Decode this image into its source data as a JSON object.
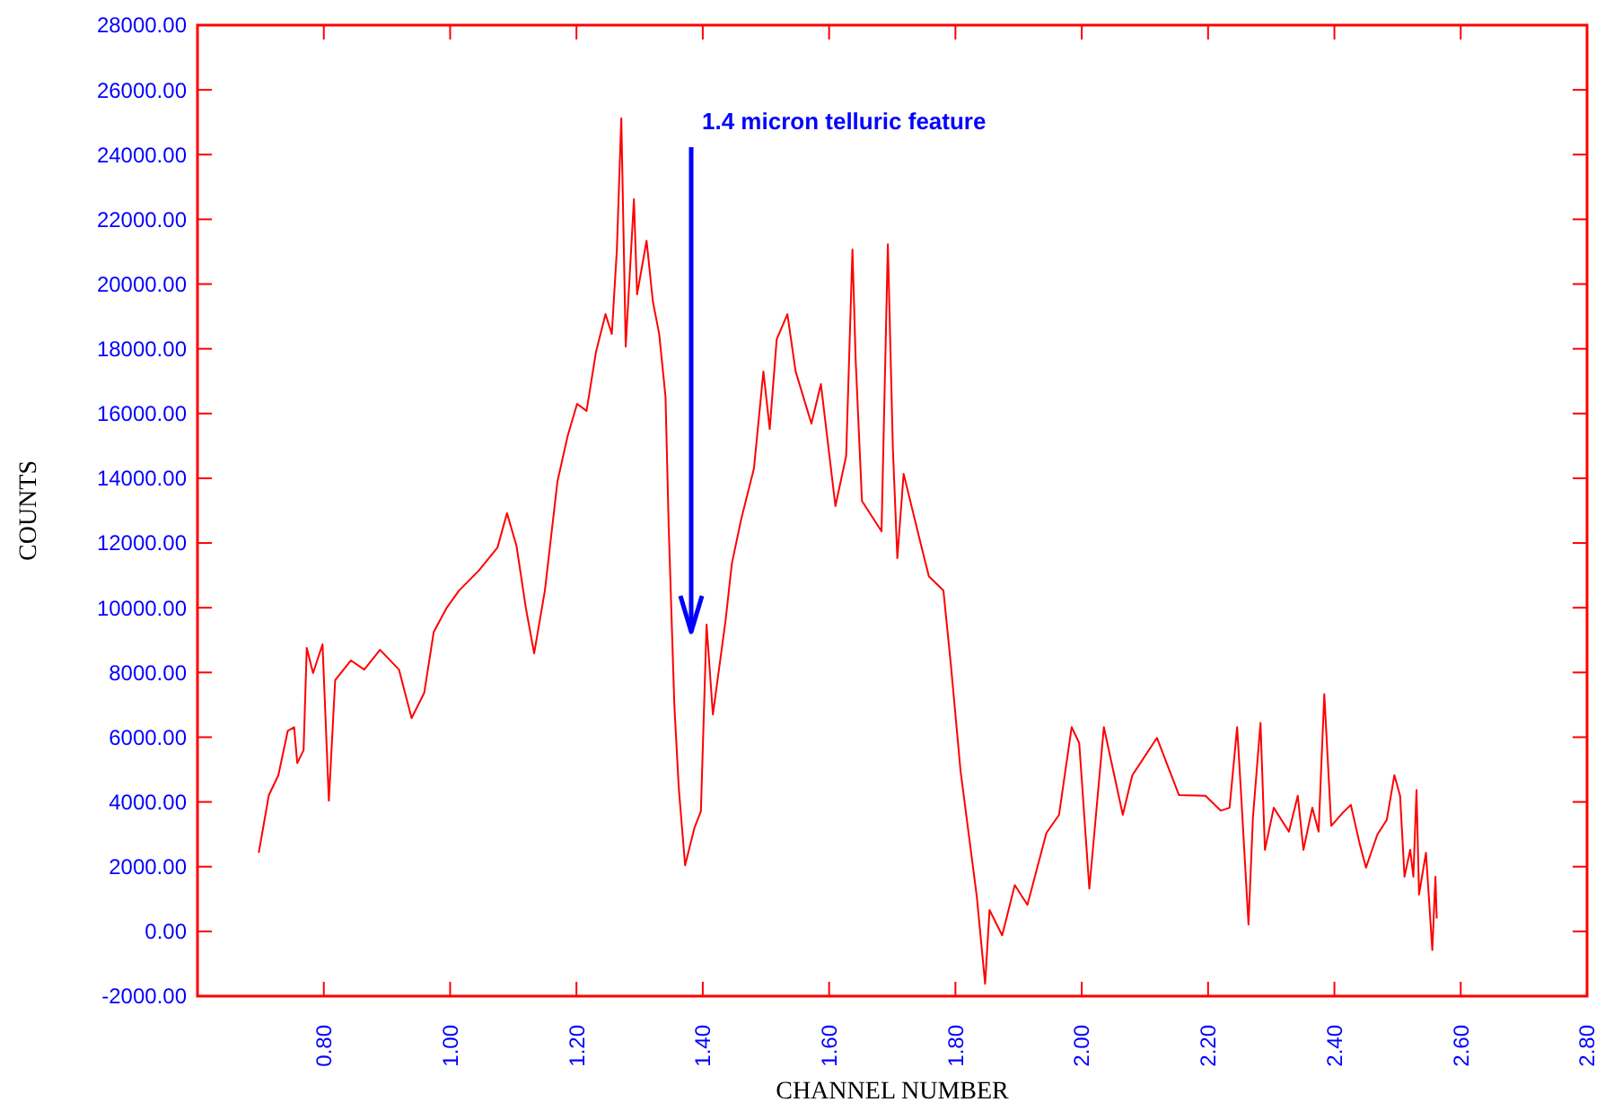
{
  "chart_data": {
    "type": "line",
    "xlabel": "CHANNEL NUMBER",
    "ylabel": "COUNTS",
    "annotations": [
      "1.4 micron telluric feature"
    ],
    "xlim": [
      0.6,
      2.8
    ],
    "ylim": [
      -2000,
      28000
    ],
    "xticks": [
      {
        "value": 0.8,
        "label": "0.80"
      },
      {
        "value": 1.0,
        "label": "1.00"
      },
      {
        "value": 1.2,
        "label": "1.20"
      },
      {
        "value": 1.4,
        "label": "1.40"
      },
      {
        "value": 1.6,
        "label": "1.60"
      },
      {
        "value": 1.8,
        "label": "1.80"
      },
      {
        "value": 2.0,
        "label": "2.00"
      },
      {
        "value": 2.2,
        "label": "2.20"
      },
      {
        "value": 2.4,
        "label": "2.40"
      },
      {
        "value": 2.6,
        "label": "2.60"
      },
      {
        "value": 2.8,
        "label": "2.80"
      }
    ],
    "yticks": [
      {
        "value": -2000,
        "label": "-2000.00"
      },
      {
        "value": 0,
        "label": "0.00"
      },
      {
        "value": 2000,
        "label": "2000.00"
      },
      {
        "value": 4000,
        "label": "4000.00"
      },
      {
        "value": 6000,
        "label": "6000.00"
      },
      {
        "value": 8000,
        "label": "8000.00"
      },
      {
        "value": 10000,
        "label": "10000.00"
      },
      {
        "value": 12000,
        "label": "12000.00"
      },
      {
        "value": 14000,
        "label": "14000.00"
      },
      {
        "value": 16000,
        "label": "16000.00"
      },
      {
        "value": 18000,
        "label": "18000.00"
      },
      {
        "value": 20000,
        "label": "20000.00"
      },
      {
        "value": 22000,
        "label": "22000.00"
      },
      {
        "value": 24000,
        "label": "24000.00"
      },
      {
        "value": 26000,
        "label": "26000.00"
      },
      {
        "value": 28000,
        "label": "28000.00"
      }
    ],
    "grid": false,
    "marker": "none",
    "line_style": "solid",
    "x": [
      0.697,
      0.713,
      0.728,
      0.743,
      0.753,
      0.758,
      0.768,
      0.773,
      0.783,
      0.798,
      0.808,
      0.818,
      0.843,
      0.864,
      0.889,
      0.919,
      0.939,
      0.959,
      0.974,
      0.994,
      1.014,
      1.045,
      1.075,
      1.09,
      1.105,
      1.12,
      1.133,
      1.15,
      1.17,
      1.186,
      1.201,
      1.216,
      1.231,
      1.246,
      1.256,
      1.264,
      1.271,
      1.278,
      1.291,
      1.296,
      1.311,
      1.321,
      1.331,
      1.341,
      1.346,
      1.355,
      1.362,
      1.372,
      1.387,
      1.397,
      1.406,
      1.416,
      1.436,
      1.446,
      1.461,
      1.481,
      1.496,
      1.506,
      1.517,
      1.534,
      1.547,
      1.572,
      1.587,
      1.61,
      1.627,
      1.637,
      1.642,
      1.652,
      1.683,
      1.693,
      1.701,
      1.708,
      1.718,
      1.743,
      1.758,
      1.781,
      1.793,
      1.808,
      1.834,
      1.847,
      1.854,
      1.874,
      1.894,
      1.914,
      1.944,
      1.964,
      1.984,
      1.996,
      2.012,
      2.035,
      2.065,
      2.08,
      2.119,
      2.154,
      2.196,
      2.22,
      2.234,
      2.246,
      2.253,
      2.264,
      2.271,
      2.283,
      2.29,
      2.304,
      2.328,
      2.342,
      2.351,
      2.365,
      2.375,
      2.384,
      2.395,
      2.412,
      2.426,
      2.44,
      2.45,
      2.468,
      2.483,
      2.495,
      2.504,
      2.511,
      2.52,
      2.525,
      2.53,
      2.534,
      2.545,
      2.555,
      2.56,
      2.562
    ],
    "series": [
      {
        "color": "#ff0000",
        "values": [
          2430,
          4210,
          4820,
          6200,
          6310,
          5200,
          5600,
          8760,
          7980,
          8870,
          4040,
          7760,
          8370,
          8090,
          8700,
          8090,
          6590,
          7370,
          9250,
          9980,
          10530,
          11140,
          11860,
          12920,
          11920,
          9980,
          8590,
          10530,
          13910,
          15300,
          16300,
          16080,
          17910,
          19070,
          18460,
          21070,
          25120,
          18070,
          22620,
          19680,
          21340,
          19460,
          18460,
          16520,
          12530,
          6980,
          4430,
          2040,
          3210,
          3710,
          9480,
          6700,
          9590,
          11360,
          12750,
          14300,
          17300,
          15520,
          18290,
          19070,
          17300,
          15690,
          16910,
          13140,
          14690,
          21070,
          17680,
          13300,
          12360,
          21230,
          14910,
          11530,
          14140,
          12140,
          10970,
          10530,
          8200,
          4980,
          1050,
          -1620,
          660,
          -120,
          1430,
          820,
          3040,
          3600,
          6310,
          5820,
          1320,
          6310,
          3600,
          4820,
          5980,
          4210,
          4190,
          3730,
          3820,
          6310,
          4000,
          210,
          3510,
          6440,
          2520,
          3820,
          3080,
          4190,
          2520,
          3820,
          3080,
          7330,
          3260,
          3640,
          3910,
          2710,
          1970,
          2990,
          3450,
          4830,
          4190,
          1690,
          2520,
          1690,
          4370,
          1140,
          2430,
          -580,
          1690,
          400
        ]
      }
    ]
  }
}
